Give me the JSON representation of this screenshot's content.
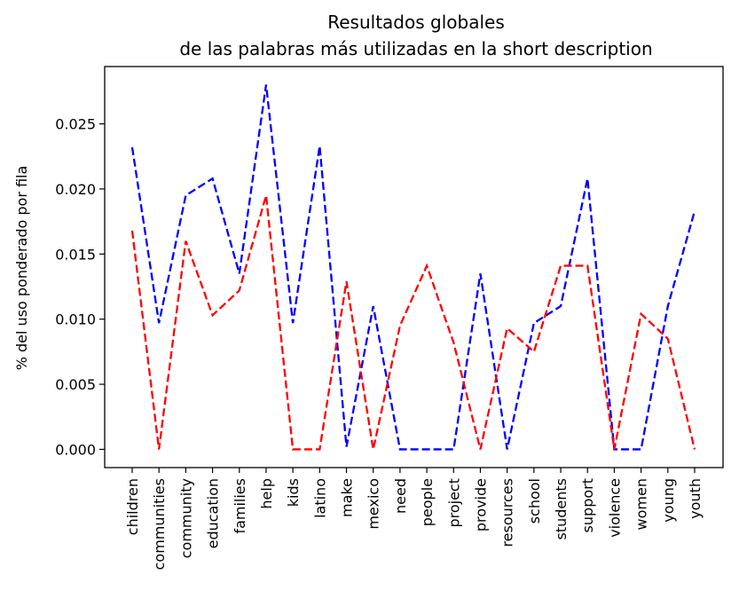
{
  "chart_data": {
    "type": "line",
    "title_lines": [
      "Resultados globales",
      "de las palabras más utilizadas en la short description"
    ],
    "xlabel": "",
    "ylabel": "% del uso ponderado por fila",
    "categories": [
      "children",
      "communities",
      "community",
      "education",
      "families",
      "help",
      "kids",
      "latino",
      "make",
      "mexico",
      "need",
      "people",
      "project",
      "provide",
      "resources",
      "school",
      "students",
      "support",
      "violence",
      "women",
      "young",
      "youth"
    ],
    "series": [
      {
        "color": "#0000ff",
        "style": "dashed",
        "values": [
          0.0232,
          0.0097,
          0.0195,
          0.0208,
          0.0135,
          0.028,
          0.0097,
          0.0233,
          0.0002,
          0.011,
          0.0,
          0.0,
          0.0,
          0.0135,
          0.0,
          0.0097,
          0.011,
          0.0208,
          0.0,
          0.0,
          0.011,
          0.0183
        ]
      },
      {
        "color": "#ff0000",
        "style": "dashed",
        "values": [
          0.0168,
          0.0,
          0.016,
          0.0103,
          0.0122,
          0.0195,
          0.0,
          0.0,
          0.0129,
          0.0,
          0.0095,
          0.0141,
          0.0082,
          0.0,
          0.0093,
          0.0075,
          0.0141,
          0.0141,
          0.0,
          0.0104,
          0.0085,
          0.0
        ]
      }
    ],
    "yticks": [
      "0.000",
      "0.005",
      "0.010",
      "0.015",
      "0.020",
      "0.025"
    ],
    "ytick_values": [
      0,
      0.005,
      0.01,
      0.015,
      0.02,
      0.025
    ],
    "ylim": [
      -0.0014,
      0.0294
    ],
    "grid": false,
    "legend": "none"
  }
}
